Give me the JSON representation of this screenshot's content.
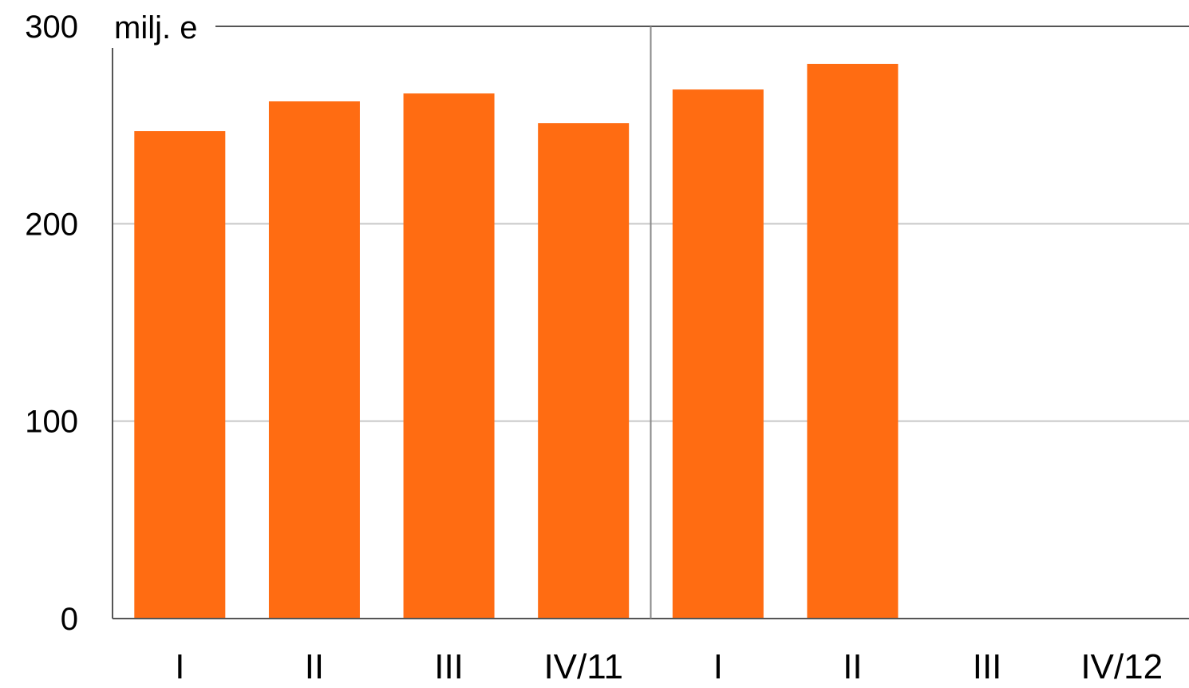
{
  "chart_data": {
    "type": "bar",
    "unit_label": "milj. e",
    "categories": [
      "I",
      "II",
      "III",
      "IV/11",
      "I",
      "II",
      "III",
      "IV/12"
    ],
    "values": [
      247,
      262,
      266,
      251,
      268,
      281,
      null,
      null
    ],
    "ylim": [
      0,
      300
    ],
    "yticks": [
      0,
      100,
      200,
      300
    ],
    "grid": true,
    "year_divider_after_index": 3,
    "colors": {
      "bar": "#ff6c12",
      "grid": "#c8c8c8",
      "axis": "#555555",
      "divider": "#888888"
    }
  }
}
